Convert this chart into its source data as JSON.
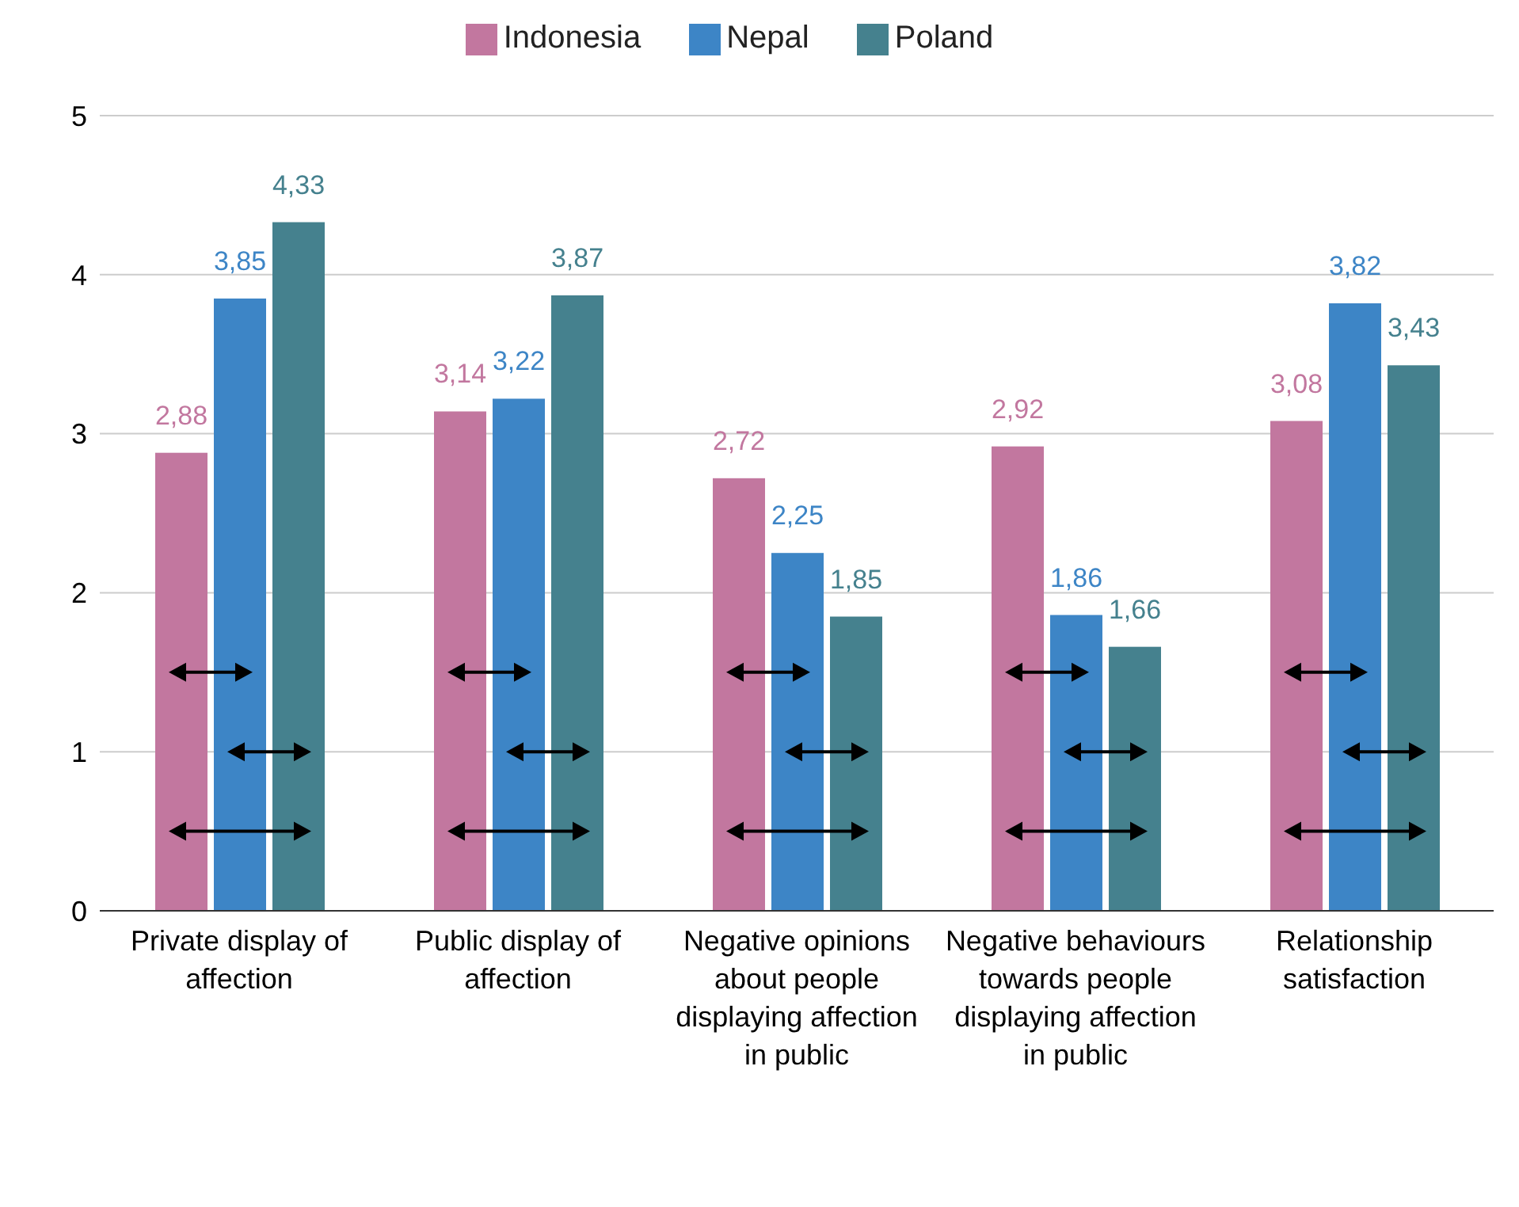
{
  "chart_data": {
    "type": "bar",
    "categories": [
      "Private display of affection",
      "Public display of affection",
      "Negative opinions about people displaying affection in public",
      "Negative behaviours towards people displaying affection in public",
      "Relationship satisfaction"
    ],
    "series": [
      {
        "name": "Indonesia",
        "color": "#c2779f",
        "values": [
          2.88,
          3.14,
          2.72,
          2.92,
          3.08
        ],
        "value_labels": [
          "2,88",
          "3,14",
          "2,72",
          "2,92",
          "3,08"
        ]
      },
      {
        "name": "Nepal",
        "color": "#3d85c6",
        "values": [
          3.85,
          3.22,
          2.25,
          1.86,
          3.82
        ],
        "value_labels": [
          "3,85",
          "3,22",
          "2,25",
          "1,86",
          "3,82"
        ]
      },
      {
        "name": "Poland",
        "color": "#45818e",
        "values": [
          4.33,
          3.87,
          1.85,
          1.66,
          3.43
        ],
        "value_labels": [
          "4,33",
          "3,87",
          "1,85",
          "1,66",
          "3,43"
        ]
      }
    ],
    "ylim": [
      0,
      5
    ],
    "yticks": [
      0,
      1,
      2,
      3,
      4,
      5
    ],
    "grid": "y",
    "legend": "top"
  }
}
